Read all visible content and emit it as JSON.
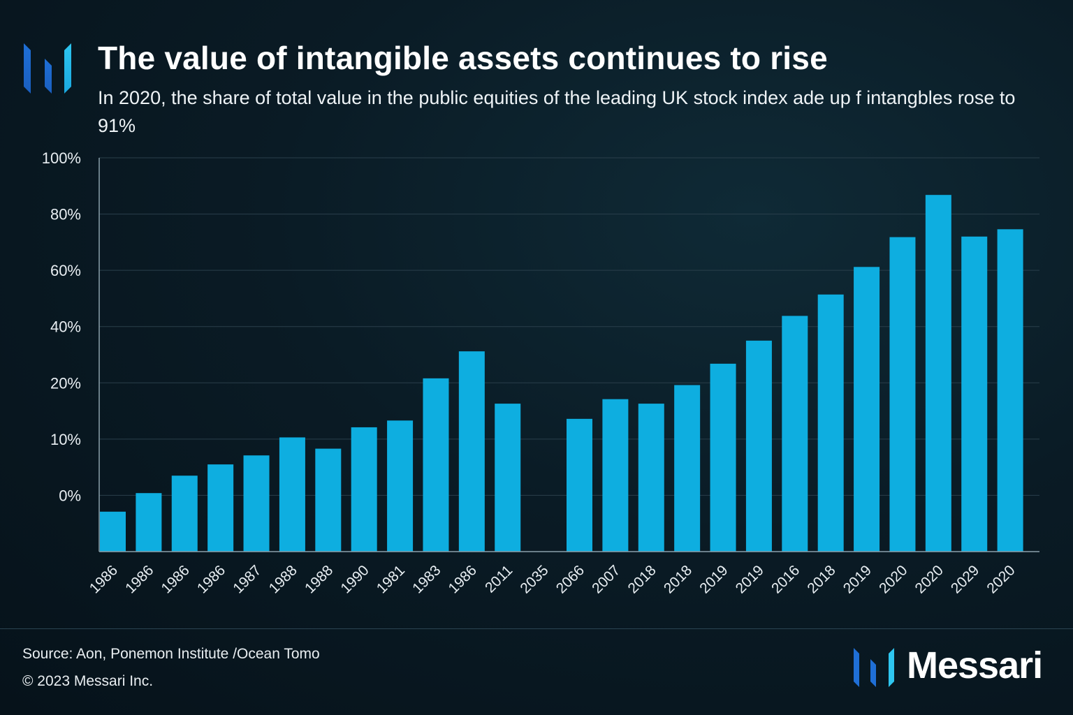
{
  "header": {
    "logo_icon": "messari-bars-icon",
    "title": "The value of intangible assets continues to rise",
    "subtitle": "In 2020, the share of total value in the public equities of the leading UK stock index ade up f intangbles rose to 91%"
  },
  "colors": {
    "bar": "#0eaee0",
    "axis": "#8aa0ab",
    "grid": "#2a3f4b",
    "logo_dark": "#1f6fd6",
    "logo_light": "#2ec6f0"
  },
  "chart_data": {
    "type": "bar",
    "title": "The value of intangible assets continues to rise",
    "xlabel": "",
    "ylabel": "",
    "y_tick_labels": [
      "100%",
      "80%",
      "60%",
      "40%",
      "20%",
      "10%",
      "0%"
    ],
    "y_tick_levels": [
      7,
      6,
      5,
      4,
      3,
      2,
      1
    ],
    "ylim": [
      0,
      7
    ],
    "grid": true,
    "categories": [
      "1986",
      "1986",
      "1986",
      "1986",
      "1987",
      "1988",
      "1988",
      "1990",
      "1981",
      "1983",
      "1986",
      "2011",
      "2035",
      "2066",
      "2007",
      "2018",
      "2018",
      "2019",
      "2019",
      "2016",
      "2018",
      "2019",
      "2020",
      "2020",
      "2029",
      "2020"
    ],
    "values": [
      0.71,
      1.04,
      1.35,
      1.55,
      1.71,
      2.03,
      1.83,
      2.21,
      2.33,
      3.08,
      3.56,
      2.63,
      null,
      2.36,
      2.71,
      2.63,
      2.96,
      3.34,
      3.75,
      4.19,
      4.57,
      5.06,
      5.59,
      6.34,
      5.6,
      5.73
    ],
    "legend": "none"
  },
  "footer": {
    "source": "Source: Aon, Ponemon Institute /Ocean Tomo",
    "copyright": "© 2023 Messari Inc.",
    "brand_icon": "messari-bars-icon",
    "brand_name": "Messari"
  }
}
